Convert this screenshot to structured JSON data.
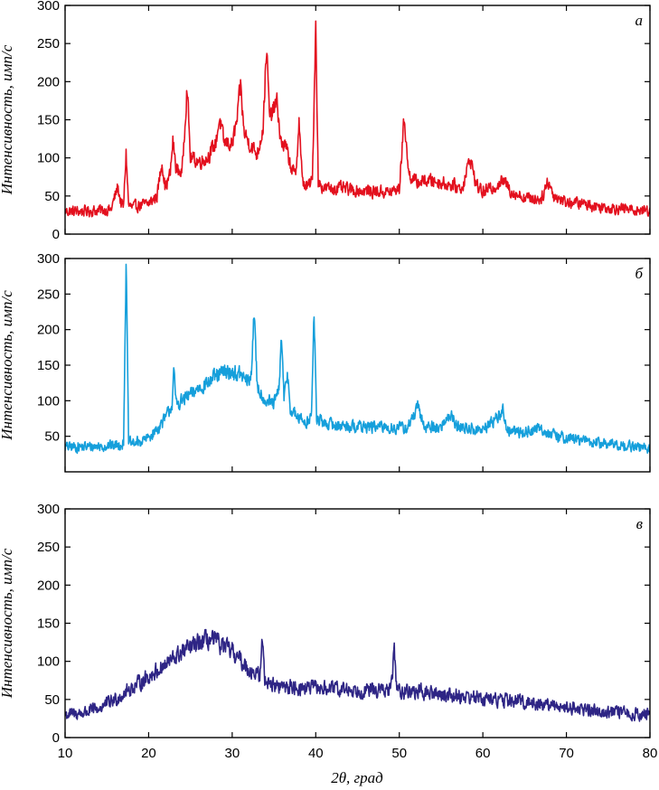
{
  "chart_data": [
    {
      "type": "line",
      "panel_label": "а",
      "color": "#e3101e",
      "ylabel": "Интенсивность, имп/с",
      "xlim": [
        10,
        80
      ],
      "ylim": [
        0,
        300
      ],
      "x_ticks": [
        10,
        20,
        30,
        40,
        50,
        60,
        70,
        80
      ],
      "y_ticks": [
        0,
        50,
        100,
        150,
        200,
        250,
        300
      ],
      "series": [
        {
          "points": [
            [
              10,
              30
            ],
            [
              12,
              30
            ],
            [
              14,
              31
            ],
            [
              15.5,
              32
            ],
            [
              16.3,
              62
            ],
            [
              16.7,
              40
            ],
            [
              17.0,
              36
            ],
            [
              17.3,
              107
            ],
            [
              17.6,
              38
            ],
            [
              18,
              35
            ],
            [
              19,
              38
            ],
            [
              20,
              40
            ],
            [
              21,
              50
            ],
            [
              21.6,
              95
            ],
            [
              22,
              60
            ],
            [
              22.6,
              80
            ],
            [
              22.9,
              122
            ],
            [
              23.3,
              85
            ],
            [
              24,
              80
            ],
            [
              24.6,
              195
            ],
            [
              25,
              100
            ],
            [
              26,
              95
            ],
            [
              27,
              100
            ],
            [
              28,
              118
            ],
            [
              28.5,
              152
            ],
            [
              29,
              120
            ],
            [
              30,
              118
            ],
            [
              30.6,
              150
            ],
            [
              31,
              196
            ],
            [
              31.4,
              135
            ],
            [
              32,
              120
            ],
            [
              33,
              105
            ],
            [
              33.7,
              140
            ],
            [
              34.1,
              245
            ],
            [
              34.5,
              150
            ],
            [
              35,
              165
            ],
            [
              35.4,
              172
            ],
            [
              35.8,
              120
            ],
            [
              36.4,
              115
            ],
            [
              37,
              90
            ],
            [
              37.6,
              75
            ],
            [
              38,
              150
            ],
            [
              38.4,
              68
            ],
            [
              39,
              62
            ],
            [
              39.6,
              70
            ],
            [
              40,
              280
            ],
            [
              40.3,
              68
            ],
            [
              41,
              60
            ],
            [
              43,
              60
            ],
            [
              45,
              57
            ],
            [
              47,
              56
            ],
            [
              49,
              55
            ],
            [
              50,
              60
            ],
            [
              50.6,
              155
            ],
            [
              51.1,
              80
            ],
            [
              52,
              68
            ],
            [
              53,
              70
            ],
            [
              54,
              70
            ],
            [
              56,
              65
            ],
            [
              57.5,
              60
            ],
            [
              58.5,
              100
            ],
            [
              59.2,
              65
            ],
            [
              60,
              55
            ],
            [
              61,
              60
            ],
            [
              62.5,
              70
            ],
            [
              63.5,
              55
            ],
            [
              65,
              48
            ],
            [
              67,
              46
            ],
            [
              67.8,
              70
            ],
            [
              68.5,
              50
            ],
            [
              70,
              42
            ],
            [
              72,
              40
            ],
            [
              74,
              36
            ],
            [
              76,
              34
            ],
            [
              78,
              32
            ],
            [
              80,
              31
            ]
          ],
          "noise": 14
        }
      ]
    },
    {
      "type": "line",
      "panel_label": "б",
      "color": "#159fdb",
      "ylabel": "Интенсивность, имп/с",
      "xlim": [
        10,
        80
      ],
      "ylim": [
        0,
        300
      ],
      "x_ticks": [
        10,
        20,
        30,
        40,
        50,
        60,
        70,
        80
      ],
      "y_ticks": [
        50,
        100,
        150,
        200,
        250,
        300
      ],
      "series": [
        {
          "points": [
            [
              10,
              35
            ],
            [
              12,
              35
            ],
            [
              14,
              36
            ],
            [
              16,
              37
            ],
            [
              17.0,
              40
            ],
            [
              17.3,
              298
            ],
            [
              17.6,
              42
            ],
            [
              18,
              40
            ],
            [
              19,
              42
            ],
            [
              20,
              48
            ],
            [
              21,
              60
            ],
            [
              22,
              75
            ],
            [
              22.8,
              95
            ],
            [
              23,
              140
            ],
            [
              23.3,
              95
            ],
            [
              24,
              100
            ],
            [
              25,
              108
            ],
            [
              26,
              118
            ],
            [
              27,
              125
            ],
            [
              28,
              133
            ],
            [
              29,
              140
            ],
            [
              30,
              140
            ],
            [
              31,
              136
            ],
            [
              32,
              125
            ],
            [
              32.3,
              140
            ],
            [
              32.6,
              226
            ],
            [
              33,
              120
            ],
            [
              34,
              100
            ],
            [
              35,
              95
            ],
            [
              35.6,
              115
            ],
            [
              35.9,
              192
            ],
            [
              36.2,
              100
            ],
            [
              36.6,
              140
            ],
            [
              37,
              85
            ],
            [
              38,
              75
            ],
            [
              39,
              70
            ],
            [
              39.5,
              80
            ],
            [
              39.8,
              224
            ],
            [
              40.1,
              75
            ],
            [
              41,
              68
            ],
            [
              43,
              65
            ],
            [
              45,
              64
            ],
            [
              47,
              63
            ],
            [
              49,
              62
            ],
            [
              51,
              62
            ],
            [
              52.2,
              90
            ],
            [
              53,
              64
            ],
            [
              55,
              62
            ],
            [
              56,
              82
            ],
            [
              57,
              63
            ],
            [
              60,
              58
            ],
            [
              62.4,
              85
            ],
            [
              63,
              58
            ],
            [
              65,
              55
            ],
            [
              67,
              62
            ],
            [
              68,
              52
            ],
            [
              70,
              48
            ],
            [
              72,
              44
            ],
            [
              74,
              40
            ],
            [
              76,
              38
            ],
            [
              78,
              35
            ],
            [
              80,
              33
            ]
          ],
          "noise": 14
        }
      ]
    },
    {
      "type": "line",
      "panel_label": "в",
      "color": "#2e2585",
      "xlabel": "2θ, град",
      "ylabel": "Интенсивность, имп/с",
      "xlim": [
        10,
        80
      ],
      "ylim": [
        0,
        300
      ],
      "x_ticks": [
        10,
        20,
        30,
        40,
        50,
        60,
        70,
        80
      ],
      "y_ticks": [
        0,
        50,
        100,
        150,
        200,
        250,
        300
      ],
      "series": [
        {
          "points": [
            [
              10,
              30
            ],
            [
              12,
              32
            ],
            [
              14,
              38
            ],
            [
              16,
              50
            ],
            [
              18,
              65
            ],
            [
              20,
              80
            ],
            [
              22,
              95
            ],
            [
              24,
              112
            ],
            [
              26,
              124
            ],
            [
              27,
              128
            ],
            [
              28,
              126
            ],
            [
              30,
              112
            ],
            [
              32,
              90
            ],
            [
              33.3,
              80
            ],
            [
              33.6,
              128
            ],
            [
              33.9,
              78
            ],
            [
              35,
              68
            ],
            [
              37,
              66
            ],
            [
              40,
              65
            ],
            [
              43,
              63
            ],
            [
              46,
              62
            ],
            [
              49,
              62
            ],
            [
              49.4,
              118
            ],
            [
              49.7,
              62
            ],
            [
              52,
              60
            ],
            [
              55,
              57
            ],
            [
              58,
              54
            ],
            [
              61,
              50
            ],
            [
              64,
              48
            ],
            [
              67,
              44
            ],
            [
              70,
              40
            ],
            [
              73,
              36
            ],
            [
              76,
              33
            ],
            [
              78,
              31
            ],
            [
              80,
              30
            ]
          ],
          "noise": 16
        }
      ]
    }
  ]
}
